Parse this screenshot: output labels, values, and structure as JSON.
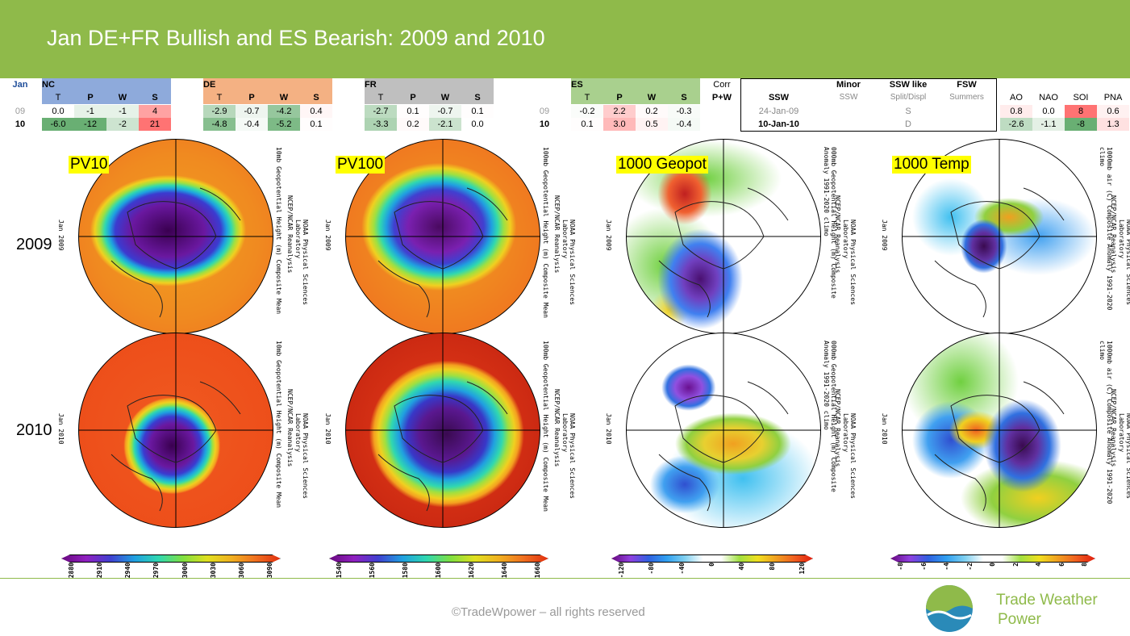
{
  "title": "Jan DE+FR Bullish and ES Bearish: 2009 and 2010",
  "table": {
    "jan_label": "Jan",
    "rows": [
      "09",
      "10"
    ],
    "nc": {
      "label": "NC",
      "cols": [
        "T",
        "P",
        "W",
        "S"
      ],
      "r09": [
        "0.0",
        "-1",
        "-1",
        "4"
      ],
      "r10": [
        "-6.0",
        "-12",
        "-2",
        "21"
      ]
    },
    "de": {
      "label": "DE",
      "cols": [
        "T",
        "P",
        "W",
        "S"
      ],
      "r09": [
        "-2.9",
        "-0.7",
        "-4.2",
        "0.4"
      ],
      "r10": [
        "-4.8",
        "-0.4",
        "-5.2",
        "0.1"
      ]
    },
    "fr": {
      "label": "FR",
      "cols": [
        "T",
        "P",
        "W",
        "S"
      ],
      "r09": [
        "-2.7",
        "0.1",
        "-0.7",
        "0.1"
      ],
      "r10": [
        "-3.3",
        "0.2",
        "-2.1",
        "0.0"
      ]
    },
    "es": {
      "label": "ES",
      "cols": [
        "T",
        "P",
        "W",
        "S"
      ],
      "r09": [
        "-0.2",
        "2.2",
        "0.2",
        "-0.3"
      ],
      "r10": [
        "0.1",
        "3.0",
        "0.5",
        "-0.4"
      ]
    },
    "corr": "Corr",
    "pw": "P+W",
    "ssw": {
      "label": "SSW",
      "r09": "24-Jan-09",
      "r10": "10-Jan-10"
    },
    "minor": {
      "label": "Minor",
      "sub": "SSW"
    },
    "sswlike": {
      "label": "SSW like",
      "sub": "Split/Displ",
      "r09": "S",
      "r10": "D"
    },
    "fsw": {
      "label": "FSW",
      "sub": "Summers"
    },
    "idx": {
      "cols": [
        "AO",
        "NAO",
        "SOI",
        "PNA"
      ],
      "r09": [
        "0.8",
        "0.0",
        "8",
        "0.6"
      ],
      "r10": [
        "-2.6",
        "-1.1",
        "-8",
        "1.3"
      ]
    }
  },
  "maps": {
    "labels": [
      "PV10",
      "PV100",
      "1000 Geopot",
      "1000 Temp"
    ],
    "years": [
      "2009",
      "2010"
    ],
    "captions": [
      "10mb Geopotential Height (m) Composite Mean",
      "100mb Geopotential Height (m) Composite Mean",
      "000mb Geopotential Height (m) Composite Anomaly 1991-2020 climo",
      "1000mb air (C) Composite Anomaly 1991-2020 climo"
    ],
    "source": "NCEP/NCAR Reanalysis",
    "lab": "NOAA Physical Sciences Laboratory",
    "jan09": "Jan 2009",
    "jan10": "Jan 2010"
  },
  "colorbars": {
    "pv10": [
      "2880",
      "2910",
      "2940",
      "2970",
      "3000",
      "3030",
      "3060",
      "3090"
    ],
    "pv100": [
      "1540",
      "1560",
      "1580",
      "1600",
      "1620",
      "1640",
      "1660"
    ],
    "geopot": [
      "-120",
      "-80",
      "-40",
      "0",
      "40",
      "80",
      "120"
    ],
    "temp": [
      "-8",
      "-6",
      "-4",
      "-2",
      "0",
      "2",
      "4",
      "6",
      "8"
    ]
  },
  "footer": {
    "copyright": "©TradeWpower – all rights reserved",
    "logo_line1": "Trade Weather",
    "logo_line2": "Power"
  }
}
